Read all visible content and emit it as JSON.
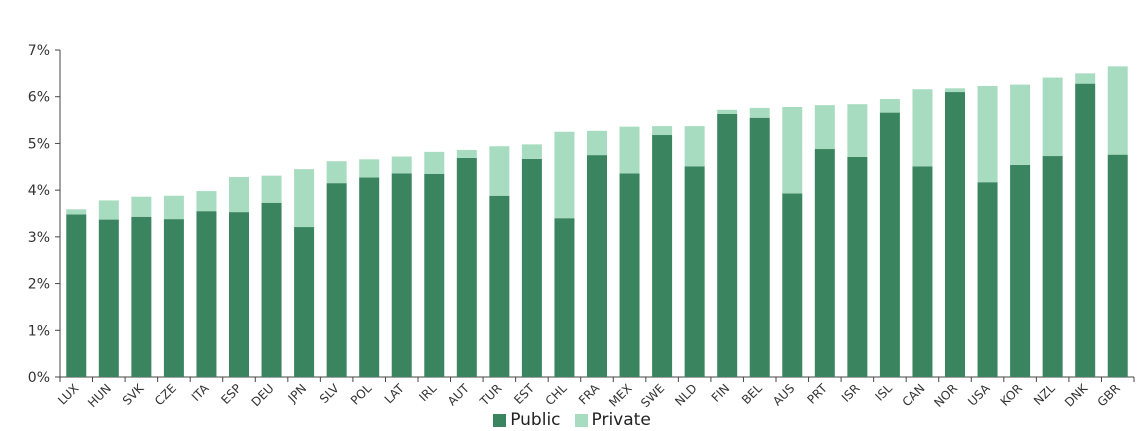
{
  "colors": {
    "public": "#3a8560",
    "private": "#a8dcc0",
    "axis": "#444444",
    "text": "#333333"
  },
  "chart_data": {
    "type": "bar",
    "stacked": true,
    "title": "",
    "xlabel": "",
    "ylabel": "",
    "ylim": [
      0,
      7
    ],
    "y_ticks": [
      "0%",
      "1%",
      "2%",
      "3%",
      "4%",
      "5%",
      "6%",
      "7%"
    ],
    "grid": false,
    "legend_position": "bottom",
    "categories": [
      "LUX",
      "HUN",
      "SVK",
      "CZE",
      "ITA",
      "ESP",
      "DEU",
      "JPN",
      "SLV",
      "POL",
      "LAT",
      "IRL",
      "AUT",
      "TUR",
      "EST",
      "CHL",
      "FRA",
      "MEX",
      "SWE",
      "NLD",
      "FIN",
      "BEL",
      "AUS",
      "PRT",
      "ISR",
      "ISL",
      "CAN",
      "NOR",
      "USA",
      "KOR",
      "NZL",
      "DNK",
      "GBR"
    ],
    "series": [
      {
        "name": "Public",
        "values": [
          3.48,
          3.37,
          3.43,
          3.38,
          3.55,
          3.53,
          3.73,
          3.21,
          4.15,
          4.27,
          4.36,
          4.35,
          4.69,
          3.88,
          4.67,
          3.4,
          4.75,
          4.36,
          5.18,
          4.51,
          5.63,
          5.55,
          3.93,
          4.88,
          4.71,
          5.66,
          4.51,
          6.1,
          4.17,
          4.54,
          4.73,
          6.28,
          4.76
        ]
      },
      {
        "name": "Private",
        "values": [
          0.11,
          0.41,
          0.43,
          0.5,
          0.43,
          0.75,
          0.58,
          1.24,
          0.47,
          0.39,
          0.36,
          0.47,
          0.17,
          1.06,
          0.31,
          1.85,
          0.52,
          1.0,
          0.19,
          0.86,
          0.09,
          0.21,
          1.85,
          0.94,
          1.13,
          0.29,
          1.65,
          0.08,
          2.06,
          1.72,
          1.68,
          0.22,
          1.89
        ]
      }
    ]
  },
  "legend": {
    "public": "Public",
    "private": "Private"
  }
}
